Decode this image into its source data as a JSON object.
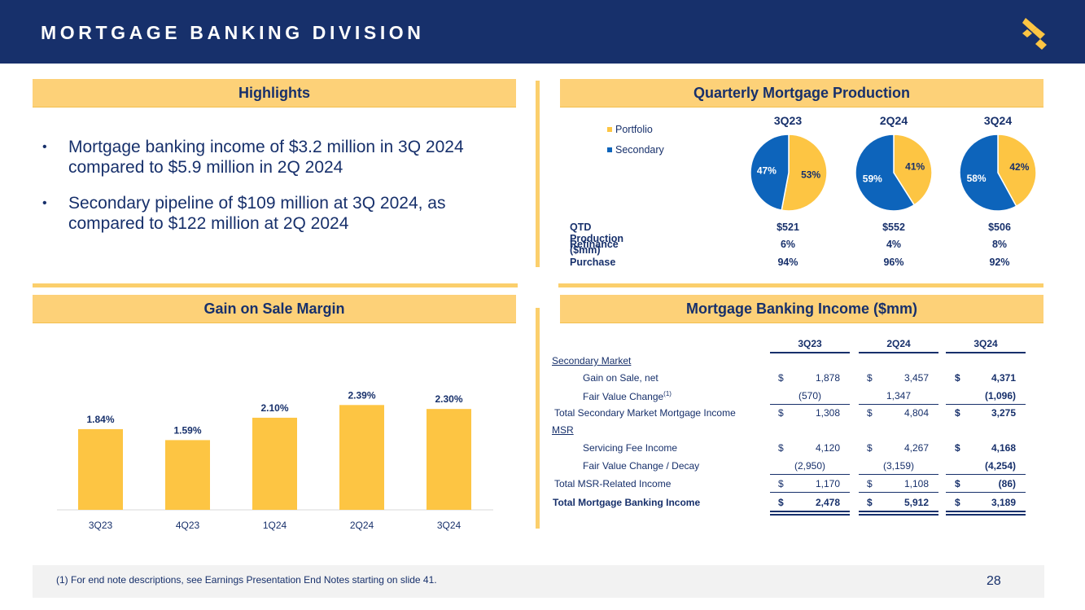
{
  "header": {
    "title": "MORTGAGE BANKING DIVISION"
  },
  "colors": {
    "navy": "#17306b",
    "gold": "#fdc543",
    "blue": "#0d64bb",
    "header_fill": "#fdd178"
  },
  "highlights": {
    "title": "Highlights",
    "bullets": [
      "Mortgage banking income of $3.2 million in 3Q 2024 compared to $5.9 million in 2Q 2024",
      "Secondary pipeline of $109 million at 3Q 2024, as compared to $122 million at 2Q 2024"
    ]
  },
  "production": {
    "title": "Quarterly Mortgage Production",
    "legend": [
      "Portfolio",
      "Secondary"
    ],
    "quarters": [
      "3Q23",
      "2Q24",
      "3Q24"
    ],
    "rows": [
      {
        "label": "QTD Production ($mm)",
        "values": [
          "$521",
          "$552",
          "$506"
        ]
      },
      {
        "label": "Refinance",
        "values": [
          "6%",
          "4%",
          "8%"
        ]
      },
      {
        "label": "Purchase",
        "values": [
          "94%",
          "96%",
          "92%"
        ]
      }
    ]
  },
  "gain_on_sale": {
    "title": "Gain on Sale Margin"
  },
  "income": {
    "title": "Mortgage Banking Income ($mm)",
    "columns": [
      "3Q23",
      "2Q24",
      "3Q24"
    ],
    "rows": [
      {
        "label": "Secondary Market",
        "style": "section"
      },
      {
        "label": "Gain on Sale, net",
        "style": "indent",
        "dollar": true,
        "values": [
          "1,878",
          "3,457",
          "4,371"
        ]
      },
      {
        "label": "Fair Value Change",
        "sup": "(1)",
        "style": "indent",
        "dollar": false,
        "values": [
          "(570)",
          "1,347",
          "(1,096)"
        ]
      },
      {
        "label": "Total Secondary Market Mortgage Income",
        "style": "total",
        "dollar": true,
        "values": [
          "1,308",
          "4,804",
          "3,275"
        ]
      },
      {
        "label": "MSR",
        "style": "section"
      },
      {
        "label": "Servicing Fee Income",
        "style": "indent",
        "dollar": true,
        "values": [
          "4,120",
          "4,267",
          "4,168"
        ]
      },
      {
        "label": "Fair Value Change / Decay",
        "style": "indent",
        "dollar": false,
        "values": [
          "(2,950)",
          "(3,159)",
          "(4,254)"
        ]
      },
      {
        "label": "Total MSR-Related Income",
        "style": "total",
        "dollar": true,
        "values": [
          "1,170",
          "1,108",
          "(86)"
        ]
      },
      {
        "label": "Total Mortgage Banking Income",
        "style": "grand",
        "dollar": true,
        "values": [
          "2,478",
          "5,912",
          "3,189"
        ]
      }
    ],
    "currency_symbol": "$"
  },
  "footer": {
    "note": "(1)   For end note descriptions, see Earnings Presentation End Notes starting on slide 41.",
    "page": "28"
  },
  "chart_data": [
    {
      "type": "pie",
      "title": "3Q23",
      "labels": [
        "Portfolio",
        "Secondary"
      ],
      "values": [
        53,
        47
      ],
      "value_labels": [
        "53%",
        "47%"
      ]
    },
    {
      "type": "pie",
      "title": "2Q24",
      "labels": [
        "Portfolio",
        "Secondary"
      ],
      "values": [
        41,
        59
      ],
      "value_labels": [
        "41%",
        "59%"
      ]
    },
    {
      "type": "pie",
      "title": "3Q24",
      "labels": [
        "Portfolio",
        "Secondary"
      ],
      "values": [
        42,
        58
      ],
      "value_labels": [
        "42%",
        "58%"
      ]
    },
    {
      "type": "bar",
      "title": "Gain on Sale Margin",
      "categories": [
        "3Q23",
        "4Q23",
        "1Q24",
        "2Q24",
        "3Q24"
      ],
      "values": [
        1.84,
        1.59,
        2.1,
        2.39,
        2.3
      ],
      "value_labels": [
        "1.84%",
        "1.59%",
        "2.10%",
        "2.39%",
        "2.30%"
      ],
      "ylim": [
        0,
        2.6
      ],
      "grid": false
    }
  ]
}
